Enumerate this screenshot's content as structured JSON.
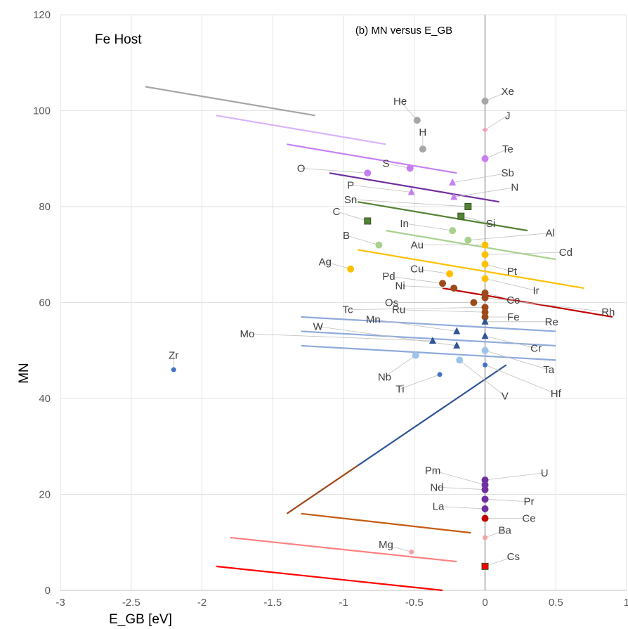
{
  "chart_data": {
    "type": "scatter",
    "title": "(b) MN versus E_GB",
    "annotation": "Fe Host",
    "xlabel": "E_GB [eV]",
    "ylabel": "MN",
    "xlim": [
      -3,
      1
    ],
    "ylim": [
      0,
      120
    ],
    "x_ticks": [
      -3,
      -2.5,
      -2,
      -1.5,
      -1,
      -0.5,
      0,
      0.5,
      1
    ],
    "x_tick_labels": [
      "-3",
      "-2.5",
      "-2",
      "-1.5",
      "-1",
      "-0.5",
      "0",
      "0.5",
      "1"
    ],
    "y_ticks": [
      0,
      20,
      40,
      60,
      80,
      100,
      120
    ],
    "y_tick_labels": [
      "0",
      "20",
      "40",
      "60",
      "80",
      "100",
      "120"
    ],
    "grid": true,
    "vertical_reference_line": 0,
    "points": [
      {
        "label": "Xe",
        "x": 0,
        "y": 102,
        "color": "#a6a6a6",
        "marker": "circle",
        "lx": 0.16,
        "ly": 104
      },
      {
        "label": "He",
        "x": -0.48,
        "y": 98,
        "color": "#a6a6a6",
        "marker": "circle",
        "lx": -0.6,
        "ly": 102
      },
      {
        "label": "J",
        "x": 0,
        "y": 96,
        "color": "#f4a3b8",
        "marker": "diamond",
        "lx": 0.16,
        "ly": 99
      },
      {
        "label": "H",
        "x": -0.44,
        "y": 92,
        "color": "#a6a6a6",
        "marker": "circle",
        "lx": -0.44,
        "ly": 95.5
      },
      {
        "label": "Te",
        "x": 0,
        "y": 90,
        "color": "#c67ef0",
        "marker": "circle",
        "lx": 0.16,
        "ly": 92
      },
      {
        "label": "O",
        "x": -0.83,
        "y": 87,
        "color": "#c67ef0",
        "marker": "circle",
        "lx": -1.3,
        "ly": 88
      },
      {
        "label": "S",
        "x": -0.53,
        "y": 88,
        "color": "#c67ef0",
        "marker": "circle",
        "lx": -0.7,
        "ly": 89
      },
      {
        "label": "Sb",
        "x": -0.23,
        "y": 85,
        "color": "#c67ef0",
        "marker": "triangle",
        "lx": 0.16,
        "ly": 87
      },
      {
        "label": "P",
        "x": -0.52,
        "y": 83,
        "color": "#c67ef0",
        "marker": "triangle",
        "lx": -0.95,
        "ly": 84.5
      },
      {
        "label": "N",
        "x": -0.22,
        "y": 82,
        "color": "#c67ef0",
        "marker": "triangle",
        "lx": 0.21,
        "ly": 84
      },
      {
        "label": "Sn",
        "x": -0.12,
        "y": 80,
        "color": "#548235",
        "marker": "square",
        "lx": -0.95,
        "ly": 81.5
      },
      {
        "label": "C",
        "x": -0.83,
        "y": 77,
        "color": "#548235",
        "marker": "square",
        "lx": -1.05,
        "ly": 79
      },
      {
        "label": "Si",
        "x": -0.17,
        "y": 78,
        "color": "#548235",
        "marker": "square",
        "lx": 0.04,
        "ly": 76.5
      },
      {
        "label": "In",
        "x": -0.23,
        "y": 75,
        "color": "#a9d18e",
        "marker": "circle",
        "lx": -0.57,
        "ly": 76.5
      },
      {
        "label": "Al",
        "x": -0.12,
        "y": 73,
        "color": "#a9d18e",
        "marker": "circle",
        "lx": 0.46,
        "ly": 74.5
      },
      {
        "label": "B",
        "x": -0.75,
        "y": 72,
        "color": "#a9d18e",
        "marker": "circle",
        "lx": -0.98,
        "ly": 74
      },
      {
        "label": "Au",
        "x": 0,
        "y": 72,
        "color": "#ffc000",
        "marker": "circle",
        "lx": -0.48,
        "ly": 72
      },
      {
        "label": "Cd",
        "x": 0,
        "y": 70,
        "color": "#ffc000",
        "marker": "circle",
        "lx": 0.57,
        "ly": 70.5
      },
      {
        "label": "Ag",
        "x": -0.95,
        "y": 67,
        "color": "#ffc000",
        "marker": "circle",
        "lx": -1.13,
        "ly": 68.5
      },
      {
        "label": "Cu",
        "x": -0.25,
        "y": 66,
        "color": "#ffc000",
        "marker": "circle",
        "lx": -0.48,
        "ly": 67
      },
      {
        "label": "Pt",
        "x": 0,
        "y": 68,
        "color": "#ffc000",
        "marker": "circle",
        "lx": 0.19,
        "ly": 66.5
      },
      {
        "label": "Pd",
        "x": -0.3,
        "y": 64,
        "color": "#9c4a1a",
        "marker": "circle",
        "lx": -0.68,
        "ly": 65.5
      },
      {
        "label": "Ir",
        "x": 0,
        "y": 65,
        "color": "#ffc000",
        "marker": "circle",
        "lx": 0.36,
        "ly": 62.5
      },
      {
        "label": "Ni",
        "x": -0.22,
        "y": 63,
        "color": "#9c4a1a",
        "marker": "circle",
        "lx": -0.6,
        "ly": 63.5
      },
      {
        "label": "Co",
        "x": 0,
        "y": 62,
        "color": "#9c4a1a",
        "marker": "circle",
        "lx": 0.2,
        "ly": 60.5
      },
      {
        "label": "Os",
        "x": -0.08,
        "y": 60,
        "color": "#9c4a1a",
        "marker": "circle",
        "lx": -0.66,
        "ly": 60
      },
      {
        "label": "Rh",
        "x": 0,
        "y": 61,
        "color": "#9c4a1a",
        "marker": "circle",
        "lx": 0.87,
        "ly": 58
      },
      {
        "label": "Tc",
        "x": 0,
        "y": 59,
        "color": "#9c4a1a",
        "marker": "circle",
        "lx": -0.97,
        "ly": 58.5
      },
      {
        "label": "Ru",
        "x": 0,
        "y": 58,
        "color": "#9c4a1a",
        "marker": "circle",
        "lx": -0.61,
        "ly": 58.5
      },
      {
        "label": "Fe",
        "x": 0,
        "y": 57,
        "color": "#9c4a1a",
        "marker": "circle",
        "lx": 0.2,
        "ly": 57
      },
      {
        "label": "Mn",
        "x": -0.2,
        "y": 54,
        "color": "#2f5597",
        "marker": "triangle",
        "lx": -0.79,
        "ly": 56.5
      },
      {
        "label": "Re",
        "x": 0,
        "y": 56,
        "color": "#2f5597",
        "marker": "triangle",
        "lx": 0.47,
        "ly": 56
      },
      {
        "label": "Mo",
        "x": -0.37,
        "y": 52,
        "color": "#2f5597",
        "marker": "triangle",
        "lx": -1.68,
        "ly": 53.5
      },
      {
        "label": "W",
        "x": -0.2,
        "y": 51,
        "color": "#2f5597",
        "marker": "triangle",
        "lx": -1.18,
        "ly": 55
      },
      {
        "label": "Cr",
        "x": 0,
        "y": 53,
        "color": "#2f5597",
        "marker": "triangle",
        "lx": 0.36,
        "ly": 50.5
      },
      {
        "label": "Zr",
        "x": -2.2,
        "y": 46,
        "color": "#4472c4",
        "marker": "circle",
        "lx": -2.2,
        "ly": 49
      },
      {
        "label": "Nb",
        "x": -0.49,
        "y": 49,
        "color": "#9dc3e6",
        "marker": "circle",
        "lx": -0.71,
        "ly": 44.5
      },
      {
        "label": "V",
        "x": -0.18,
        "y": 48,
        "color": "#9dc3e6",
        "marker": "circle",
        "lx": 0.14,
        "ly": 40.5
      },
      {
        "label": "Ta",
        "x": 0,
        "y": 50,
        "color": "#9dc3e6",
        "marker": "circle",
        "lx": 0.45,
        "ly": 46
      },
      {
        "label": "Ti",
        "x": -0.32,
        "y": 45,
        "color": "#4472c4",
        "marker": "circle",
        "lx": -0.6,
        "ly": 42
      },
      {
        "label": "Hf",
        "x": 0,
        "y": 47,
        "color": "#4472c4",
        "marker": "circle",
        "lx": 0.5,
        "ly": 41
      },
      {
        "label": "U",
        "x": 0,
        "y": 23,
        "color": "#7030a0",
        "marker": "circle",
        "lx": 0.42,
        "ly": 24.5
      },
      {
        "label": "Pm",
        "x": 0,
        "y": 22,
        "color": "#7030a0",
        "marker": "circle",
        "lx": -0.37,
        "ly": 25
      },
      {
        "label": "Nd",
        "x": 0,
        "y": 21,
        "color": "#7030a0",
        "marker": "circle",
        "lx": -0.34,
        "ly": 21.5
      },
      {
        "label": "Pr",
        "x": 0,
        "y": 19,
        "color": "#7030a0",
        "marker": "circle",
        "lx": 0.31,
        "ly": 18.5
      },
      {
        "label": "La",
        "x": 0,
        "y": 17,
        "color": "#7030a0",
        "marker": "circle",
        "lx": -0.33,
        "ly": 17.5
      },
      {
        "label": "Ce",
        "x": 0,
        "y": 15,
        "color": "#c00000",
        "marker": "circle",
        "lx": 0.31,
        "ly": 15
      },
      {
        "label": "Ba",
        "x": 0,
        "y": 11,
        "color": "#f4a3a3",
        "marker": "circle",
        "lx": 0.14,
        "ly": 12.5
      },
      {
        "label": "Mg",
        "x": -0.52,
        "y": 8,
        "color": "#f4a3a3",
        "marker": "circle",
        "lx": -0.7,
        "ly": 9.5
      },
      {
        "label": "Cs",
        "x": 0,
        "y": 5,
        "color": "#ff0000",
        "marker": "square",
        "lx": 0.2,
        "ly": 7
      }
    ],
    "trend_lines": [
      {
        "color": "#a6a6a6",
        "x1": -2.4,
        "y1": 105,
        "x2": -1.2,
        "y2": 99
      },
      {
        "color": "#d9b3ff",
        "x1": -1.9,
        "y1": 99,
        "x2": -0.7,
        "y2": 93
      },
      {
        "color": "#c67ef0",
        "x1": -1.4,
        "y1": 93,
        "x2": -0.2,
        "y2": 87
      },
      {
        "color": "#7030a0",
        "x1": -1.1,
        "y1": 87,
        "x2": 0.1,
        "y2": 81
      },
      {
        "color": "#548235",
        "x1": -0.9,
        "y1": 81,
        "x2": 0.3,
        "y2": 75
      },
      {
        "color": "#a9d18e",
        "x1": -0.7,
        "y1": 75,
        "x2": 0.5,
        "y2": 69
      },
      {
        "color": "#ffc000",
        "x1": -0.9,
        "y1": 71,
        "x2": 0.7,
        "y2": 63
      },
      {
        "color": "#c00000",
        "x1": -0.3,
        "y1": 63,
        "x2": 0.9,
        "y2": 57
      },
      {
        "color": "#8faadc",
        "x1": -1.3,
        "y1": 57,
        "x2": 0.5,
        "y2": 54
      },
      {
        "color": "#8faadc",
        "x1": -1.3,
        "y1": 54,
        "x2": 0.5,
        "y2": 51
      },
      {
        "color": "#8faadc",
        "x1": -1.3,
        "y1": 51,
        "x2": 0.5,
        "y2": 48
      },
      {
        "color": "#2f5597",
        "x1": -0.9,
        "y1": 26,
        "x2": 0.15,
        "y2": 47
      },
      {
        "color": "#9c4a1a",
        "x1": -1.4,
        "y1": 16,
        "x2": -0.9,
        "y2": 26
      },
      {
        "color": "#c55a11",
        "x1": -1.3,
        "y1": 16,
        "x2": -0.1,
        "y2": 12
      },
      {
        "color": "#ff8080",
        "x1": -1.8,
        "y1": 11,
        "x2": -0.2,
        "y2": 6
      },
      {
        "color": "#ff0000",
        "x1": -1.9,
        "y1": 5,
        "x2": -0.3,
        "y2": 0
      }
    ]
  }
}
